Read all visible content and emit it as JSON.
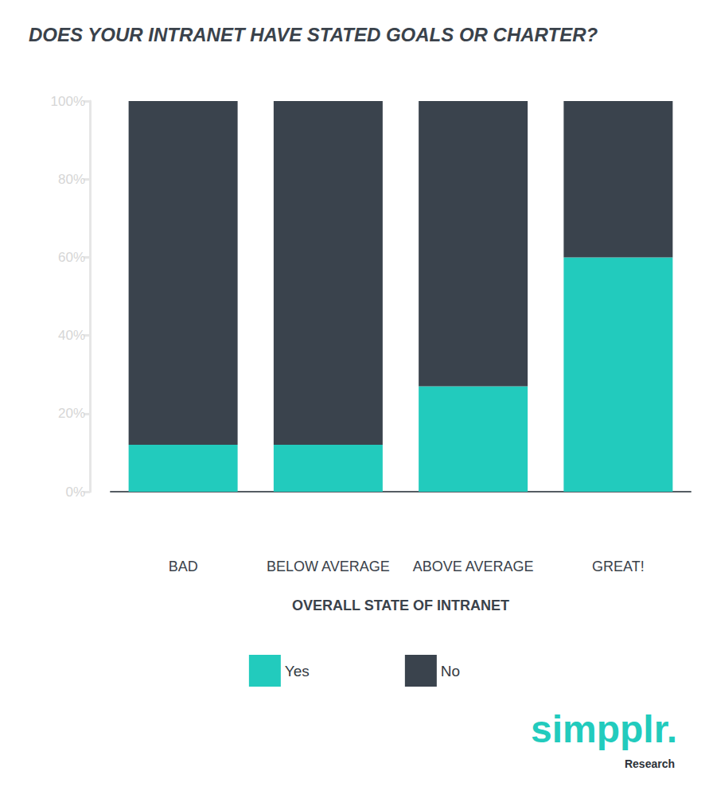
{
  "chart_data": {
    "type": "bar",
    "title": "DOES YOUR INTRANET HAVE STATED GOALS OR CHARTER?",
    "x_label": "OVERALL STATE OF INTRANET",
    "categories": [
      "BAD",
      "BELOW AVERAGE",
      "ABOVE AVERAGE",
      "GREAT!"
    ],
    "series": [
      {
        "name": "Yes",
        "color": "#22cbbd",
        "values": [
          12,
          12,
          27,
          60
        ]
      },
      {
        "name": "No",
        "color": "#3a434d",
        "values": [
          88,
          88,
          73,
          40
        ]
      }
    ],
    "stacked": true,
    "ylim": [
      0,
      100
    ],
    "yticks": [
      {
        "value": 0,
        "label": "0%"
      },
      {
        "value": 20,
        "label": "20%"
      },
      {
        "value": 40,
        "label": "40%"
      },
      {
        "value": 60,
        "label": "60%"
      },
      {
        "value": 80,
        "label": "80%"
      },
      {
        "value": 100,
        "label": "100%"
      }
    ],
    "grid": false,
    "legend": "bottom",
    "annotations": [
      "simpplr.",
      "Research"
    ]
  }
}
